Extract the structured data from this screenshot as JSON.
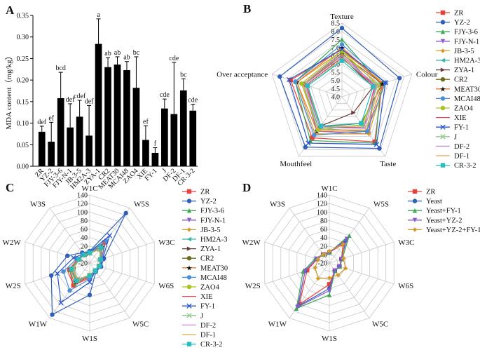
{
  "chart_data": [
    {
      "panel": "A",
      "type": "bar",
      "ylabel": "MDA content（mg/kg）",
      "ylim": [
        0,
        0.35
      ],
      "yticks": [
        "0.00",
        "0.05",
        "0.10",
        "0.15",
        "0.20",
        "0.25",
        "0.30",
        "0.35"
      ],
      "categories": [
        "ZR",
        "YZ-2",
        "FJY-3-6",
        "FJY-N-1",
        "JB-3-5",
        "HM2A-3",
        "ZYA-1",
        "CR2",
        "MEAT30",
        "MCAI48",
        "ZAO4",
        "XIE",
        "FY-1",
        "J",
        "DF-2",
        "DF-1",
        "CR-3-2"
      ],
      "values": [
        0.08,
        0.057,
        0.158,
        0.09,
        0.115,
        0.071,
        0.284,
        0.23,
        0.236,
        0.223,
        0.182,
        0.061,
        0.031,
        0.134,
        0.121,
        0.176,
        0.129
      ],
      "errors": [
        0.013,
        0.045,
        0.06,
        0.055,
        0.038,
        0.07,
        0.058,
        0.022,
        0.018,
        0.02,
        0.072,
        0.033,
        0.012,
        0.022,
        0.12,
        0.027,
        0.015
      ],
      "labels": [
        "def",
        "ef",
        "bcd",
        "def",
        "cdef",
        "def",
        "a",
        "ab",
        "ab",
        "ab",
        "bc",
        "ef",
        "f",
        "cde",
        "cde",
        "bc",
        "cde"
      ]
    },
    {
      "panel": "B",
      "type": "radar",
      "axes": [
        "Texture",
        "Colour",
        "Taste",
        "Mouthfeel",
        "Over acceptance"
      ],
      "rlim": [
        4.0,
        8.5
      ],
      "rticks": [
        "4.0",
        "4.5",
        "5.0",
        "5.5",
        "6.0",
        "6.5",
        "7.0",
        "7.5",
        "8.0",
        "8.5"
      ],
      "series": [
        {
          "name": "ZR",
          "color": "#e8403a",
          "marker": "square",
          "values": [
            6.9,
            6.6,
            7.4,
            7.1,
            7.3
          ]
        },
        {
          "name": "YZ-2",
          "color": "#2f5fb8",
          "marker": "circle",
          "values": [
            8.2,
            7.7,
            7.9,
            7.8,
            8.0
          ]
        },
        {
          "name": "FJY-3-6",
          "color": "#39a853",
          "marker": "triangle",
          "values": [
            7.5,
            6.5,
            7.5,
            7.3,
            7.0
          ]
        },
        {
          "name": "FJY-N-1",
          "color": "#8a5ad0",
          "marker": "triangle-down",
          "values": [
            6.7,
            6.1,
            6.8,
            6.6,
            6.5
          ]
        },
        {
          "name": "JB-3-5",
          "color": "#d49a2a",
          "marker": "diamond",
          "values": [
            6.8,
            6.7,
            6.8,
            6.8,
            6.9
          ]
        },
        {
          "name": "HM2A-3",
          "color": "#36b6a8",
          "marker": "triangle-left",
          "values": [
            6.5,
            6.2,
            6.6,
            6.4,
            6.5
          ]
        },
        {
          "name": "ZYA-1",
          "color": "#6b3a3a",
          "marker": "triangle-right",
          "values": [
            6.4,
            6.0,
            5.2,
            6.2,
            6.3
          ]
        },
        {
          "name": "CR2",
          "color": "#6b6b1e",
          "marker": "circle",
          "values": [
            6.6,
            6.6,
            6.0,
            6.3,
            6.4
          ]
        },
        {
          "name": "MEAT30",
          "color": "#ef7b2c",
          "marker": "star",
          "values": [
            7.0,
            6.6,
            6.6,
            6.6,
            6.9
          ]
        },
        {
          "name": "MCAI48",
          "color": "#4b8fd6",
          "marker": "circle",
          "values": [
            7.2,
            6.8,
            6.6,
            6.9,
            7.0
          ]
        },
        {
          "name": "ZAO4",
          "color": "#a7c31f",
          "marker": "circle",
          "values": [
            6.8,
            6.3,
            6.1,
            6.5,
            6.6
          ]
        },
        {
          "name": "XIE",
          "color": "#e14b55",
          "marker": "none",
          "values": [
            6.4,
            6.1,
            6.3,
            6.3,
            6.3
          ]
        },
        {
          "name": "FY-1",
          "color": "#2a55c9",
          "marker": "x",
          "values": [
            6.9,
            6.8,
            7.6,
            7.5,
            7.4
          ]
        },
        {
          "name": "J",
          "color": "#8cc78c",
          "marker": "x",
          "values": [
            6.3,
            6.3,
            6.2,
            6.3,
            6.2
          ]
        },
        {
          "name": "DF-2",
          "color": "#c28ad8",
          "marker": "none",
          "values": [
            6.5,
            6.2,
            6.4,
            6.3,
            6.4
          ]
        },
        {
          "name": "DF-1",
          "color": "#e6a64a",
          "marker": "none",
          "values": [
            6.6,
            6.4,
            6.5,
            6.5,
            6.5
          ]
        },
        {
          "name": "CR-3-2",
          "color": "#2bbdbd",
          "marker": "square",
          "values": [
            6.2,
            6.0,
            6.0,
            6.2,
            6.2
          ]
        }
      ]
    },
    {
      "panel": "C",
      "type": "radar",
      "axes": [
        "W1C",
        "W5S",
        "W3C",
        "W6S",
        "W5C",
        "W1S",
        "W1W",
        "W2S",
        "W2W",
        "W3S"
      ],
      "rlim": [
        -20,
        140
      ],
      "rticks": [
        "-20",
        "0",
        "20",
        "40",
        "60",
        "80",
        "100",
        "120",
        "140"
      ],
      "series": [
        {
          "name": "ZR",
          "color": "#e8403a",
          "marker": "square",
          "values": [
            5,
            40,
            10,
            5,
            2,
            15,
            45,
            30,
            10,
            5
          ]
        },
        {
          "name": "YZ-2",
          "color": "#2f5fb8",
          "marker": "circle",
          "values": [
            8,
            125,
            15,
            8,
            5,
            55,
            130,
            75,
            35,
            10
          ]
        },
        {
          "name": "FJY-3-6",
          "color": "#39a853",
          "marker": "triangle",
          "values": [
            4,
            30,
            8,
            4,
            2,
            12,
            40,
            30,
            8,
            4
          ]
        },
        {
          "name": "FJY-N-1",
          "color": "#8a5ad0",
          "marker": "triangle-down",
          "values": [
            3,
            25,
            7,
            3,
            2,
            10,
            35,
            25,
            7,
            3
          ]
        },
        {
          "name": "JB-3-5",
          "color": "#d49a2a",
          "marker": "diamond",
          "values": [
            3,
            25,
            7,
            3,
            2,
            10,
            32,
            25,
            7,
            3
          ]
        },
        {
          "name": "HM2A-3",
          "color": "#36b6a8",
          "marker": "triangle-left",
          "values": [
            3,
            22,
            6,
            3,
            2,
            8,
            30,
            22,
            6,
            3
          ]
        },
        {
          "name": "ZYA-1",
          "color": "#6b3a3a",
          "marker": "triangle-right",
          "values": [
            3,
            20,
            6,
            3,
            2,
            8,
            28,
            20,
            6,
            3
          ]
        },
        {
          "name": "CR2",
          "color": "#6b6b1e",
          "marker": "circle",
          "values": [
            3,
            20,
            6,
            3,
            2,
            8,
            28,
            20,
            6,
            3
          ]
        },
        {
          "name": "MEAT30",
          "color": "#ef7b2c",
          "marker": "star",
          "values": [
            4,
            28,
            8,
            4,
            2,
            10,
            35,
            28,
            8,
            4
          ]
        },
        {
          "name": "MCAI48",
          "color": "#4b8fd6",
          "marker": "circle",
          "values": [
            5,
            45,
            10,
            5,
            3,
            18,
            60,
            45,
            12,
            5
          ]
        },
        {
          "name": "ZAO4",
          "color": "#a7c31f",
          "marker": "circle",
          "values": [
            3,
            22,
            6,
            3,
            2,
            8,
            30,
            22,
            6,
            3
          ]
        },
        {
          "name": "XIE",
          "color": "#e14b55",
          "marker": "none",
          "values": [
            4,
            28,
            8,
            4,
            2,
            10,
            45,
            35,
            8,
            4
          ]
        },
        {
          "name": "FY-1",
          "color": "#2a55c9",
          "marker": "x",
          "values": [
            6,
            60,
            12,
            6,
            3,
            25,
            95,
            60,
            20,
            6
          ]
        },
        {
          "name": "J",
          "color": "#8cc78c",
          "marker": "x",
          "values": [
            3,
            20,
            6,
            3,
            2,
            8,
            28,
            20,
            6,
            3
          ]
        },
        {
          "name": "DF-2",
          "color": "#c28ad8",
          "marker": "none",
          "values": [
            3,
            22,
            6,
            3,
            2,
            8,
            30,
            22,
            6,
            3
          ]
        },
        {
          "name": "DF-1",
          "color": "#e6a64a",
          "marker": "none",
          "values": [
            3,
            22,
            6,
            3,
            2,
            8,
            30,
            22,
            6,
            3
          ]
        },
        {
          "name": "CR-3-2",
          "color": "#2bbdbd",
          "marker": "square",
          "values": [
            4,
            25,
            7,
            4,
            2,
            10,
            32,
            25,
            7,
            4
          ]
        }
      ]
    },
    {
      "panel": "D",
      "type": "radar",
      "axes": [
        "W1C",
        "W5S",
        "W3C",
        "W6S",
        "W5C",
        "W1S",
        "W1W",
        "W2S",
        "W2W",
        "W3S"
      ],
      "rlim": [
        -20,
        140
      ],
      "rticks": [
        "-20",
        "0",
        "20",
        "40",
        "60",
        "80",
        "100",
        "120",
        "140"
      ],
      "series": [
        {
          "name": "ZR",
          "color": "#e8403a",
          "marker": "square",
          "values": [
            5,
            35,
            10,
            5,
            2,
            30,
            100,
            35,
            10,
            5
          ]
        },
        {
          "name": "Yeast",
          "color": "#2f5fb8",
          "marker": "circle",
          "values": [
            5,
            45,
            10,
            5,
            2,
            40,
            105,
            40,
            12,
            5
          ]
        },
        {
          "name": "Yeast+FY-1",
          "color": "#39a853",
          "marker": "triangle",
          "values": [
            5,
            60,
            12,
            6,
            3,
            55,
            112,
            45,
            15,
            5
          ]
        },
        {
          "name": "Yeast+YZ-2",
          "color": "#8a5ad0",
          "marker": "triangle-down",
          "values": [
            5,
            50,
            10,
            5,
            2,
            45,
            108,
            40,
            12,
            5
          ]
        },
        {
          "name": "Yeast+YZ-2+FY-1",
          "color": "#d49a2a",
          "marker": "diamond",
          "values": [
            8,
            35,
            15,
            20,
            15,
            15,
            25,
            15,
            8,
            5
          ]
        }
      ]
    }
  ]
}
